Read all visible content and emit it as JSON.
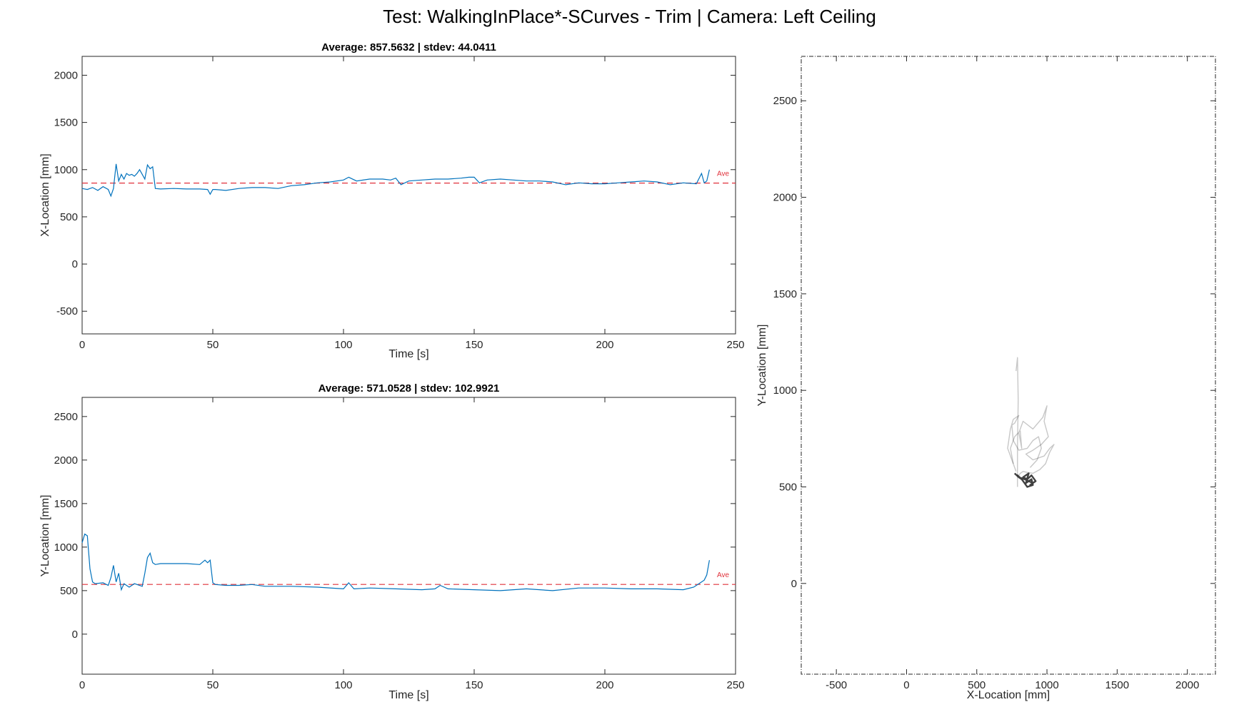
{
  "suptitle": "Test: WalkingInPlace*-SCurves - Trim  |  Camera: Left Ceiling",
  "colors": {
    "line": "#0072BD",
    "average": "#D95319",
    "path": "#000000"
  },
  "chart_data": [
    {
      "type": "line",
      "title": "Average: 857.5632  |  stdev: 44.0411",
      "xlabel": "Time [s]",
      "ylabel": "X-Location [mm]",
      "xlim": [
        0,
        250
      ],
      "ylim": [
        -740,
        2200
      ],
      "xticks": [
        "0",
        "50",
        "100",
        "150",
        "200",
        "250"
      ],
      "yticks": [
        "-500",
        "0",
        "500",
        "1000",
        "1500",
        "2000"
      ],
      "average_label": "Ave",
      "average": 857.5632,
      "series": [
        {
          "x": [
            0,
            2,
            4,
            6,
            8,
            10,
            11,
            12,
            13,
            14,
            15,
            16,
            17,
            18,
            19,
            20,
            21,
            22,
            23,
            24,
            25,
            26,
            27,
            28,
            30,
            35,
            40,
            45,
            48,
            49,
            50,
            51,
            55,
            60,
            65,
            70,
            75,
            80,
            85,
            90,
            95,
            100,
            102,
            105,
            110,
            115,
            118,
            120,
            122,
            125,
            130,
            135,
            140,
            145,
            148,
            150,
            152,
            155,
            160,
            165,
            170,
            175,
            180,
            185,
            190,
            195,
            200,
            205,
            210,
            215,
            220,
            225,
            230,
            235,
            237,
            238,
            239,
            240
          ],
          "y": [
            800,
            790,
            810,
            780,
            820,
            790,
            720,
            800,
            1060,
            880,
            950,
            900,
            960,
            940,
            950,
            930,
            960,
            1000,
            950,
            900,
            1050,
            1010,
            1030,
            800,
            795,
            800,
            795,
            795,
            790,
            740,
            790,
            790,
            780,
            800,
            810,
            810,
            800,
            830,
            840,
            860,
            870,
            890,
            920,
            880,
            900,
            900,
            890,
            910,
            840,
            880,
            890,
            900,
            900,
            910,
            920,
            920,
            860,
            890,
            900,
            890,
            880,
            880,
            870,
            840,
            860,
            850,
            850,
            860,
            870,
            880,
            870,
            840,
            860,
            850,
            960,
            860,
            880,
            1000
          ]
        }
      ]
    },
    {
      "type": "line",
      "title": "Average: 571.0528  |  stdev: 102.9921",
      "xlabel": "Time [s]",
      "ylabel": "Y-Location [mm]",
      "xlim": [
        0,
        250
      ],
      "ylim": [
        -460,
        2720
      ],
      "xticks": [
        "0",
        "50",
        "100",
        "150",
        "200",
        "250"
      ],
      "yticks": [
        "0",
        "500",
        "1000",
        "1500",
        "2000",
        "2500"
      ],
      "average_label": "Ave",
      "average": 571.0528,
      "series": [
        {
          "x": [
            0,
            1,
            2,
            3,
            4,
            5,
            8,
            10,
            11,
            12,
            13,
            14,
            15,
            16,
            18,
            20,
            23,
            24,
            25,
            26,
            27,
            28,
            30,
            35,
            40,
            45,
            47,
            48,
            49,
            50,
            51,
            55,
            60,
            65,
            70,
            80,
            90,
            100,
            102,
            104,
            110,
            120,
            130,
            135,
            137,
            140,
            150,
            160,
            170,
            180,
            190,
            200,
            210,
            220,
            230,
            234,
            236,
            238,
            239,
            240
          ],
          "y": [
            1050,
            1150,
            1130,
            750,
            600,
            580,
            590,
            560,
            650,
            790,
            600,
            700,
            510,
            580,
            540,
            580,
            550,
            700,
            880,
            930,
            820,
            800,
            810,
            810,
            810,
            800,
            850,
            820,
            850,
            590,
            570,
            560,
            560,
            570,
            550,
            550,
            540,
            520,
            590,
            520,
            530,
            520,
            510,
            520,
            560,
            520,
            510,
            500,
            520,
            500,
            530,
            530,
            520,
            520,
            510,
            540,
            580,
            620,
            680,
            850
          ]
        }
      ]
    },
    {
      "type": "line",
      "title": "",
      "xlabel": "X-Location [mm]",
      "ylabel": "Y-Location [mm]",
      "xlim": [
        -750,
        2200
      ],
      "ylim": [
        -470,
        2730
      ],
      "xticks": [
        "-500",
        "0",
        "500",
        "1000",
        "1500",
        "2000"
      ],
      "yticks": [
        "0",
        "500",
        "1000",
        "1500",
        "2000",
        "2500"
      ],
      "series": [
        {
          "x": [
            790,
            790,
            795,
            790,
            780
          ],
          "y": [
            500,
            700,
            950,
            1170,
            1100
          ]
        },
        {
          "x": [
            780,
            760,
            740,
            770,
            810,
            820,
            800,
            830,
            900,
            970,
            1000,
            980,
            1010,
            960,
            900,
            850,
            900,
            980,
            1020,
            1050,
            1020,
            990,
            950,
            900,
            860,
            830,
            810,
            800,
            810
          ],
          "y": [
            580,
            620,
            700,
            760,
            790,
            700,
            780,
            840,
            800,
            860,
            920,
            840,
            760,
            720,
            690,
            670,
            640,
            660,
            700,
            720,
            680,
            620,
            590,
            570,
            575,
            580,
            570,
            560,
            550
          ]
        },
        {
          "x": [
            760,
            720,
            740,
            760,
            800,
            770,
            750,
            760,
            800,
            860,
            900,
            940,
            960,
            930,
            880
          ],
          "y": [
            620,
            700,
            800,
            850,
            870,
            830,
            820,
            740,
            690,
            700,
            740,
            760,
            700,
            640,
            600
          ]
        },
        {
          "x": [
            770,
            800,
            840,
            870,
            900,
            880,
            920,
            890,
            860,
            830,
            870,
            850,
            890,
            900,
            880,
            860,
            840,
            820,
            800,
            790,
            810
          ],
          "y": [
            570,
            550,
            540,
            530,
            520,
            510,
            530,
            560,
            540,
            550,
            570,
            520,
            540,
            510,
            505,
            500,
            520,
            540,
            550,
            560,
            545
          ]
        }
      ]
    }
  ]
}
